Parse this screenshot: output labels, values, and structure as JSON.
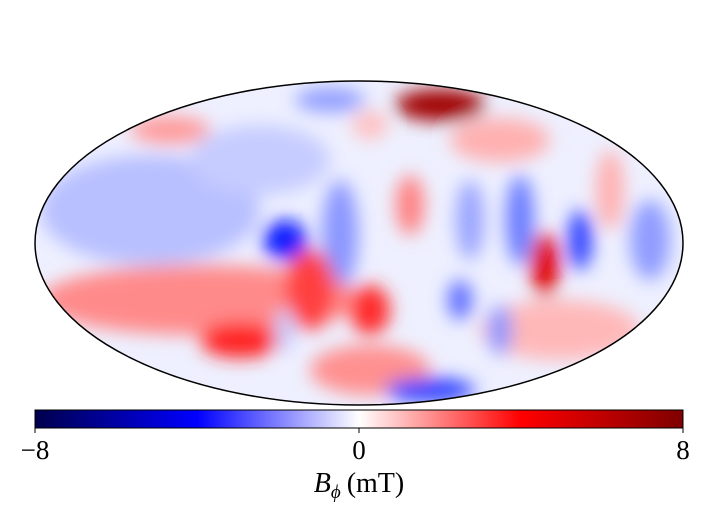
{
  "chart_data": {
    "type": "map",
    "projection": "mollweide",
    "clim": [
      -8,
      8
    ],
    "colormap": [
      "#00004c",
      "#0000ff",
      "#ffffff",
      "#ff0000",
      "#7f0000"
    ],
    "colorbar_ticks": [
      {
        "value": -8,
        "label": "−8"
      },
      0,
      8
    ],
    "colorbar_label": {
      "symbol": "B",
      "subscript": "ϕ",
      "unit": "(mT)"
    }
  }
}
